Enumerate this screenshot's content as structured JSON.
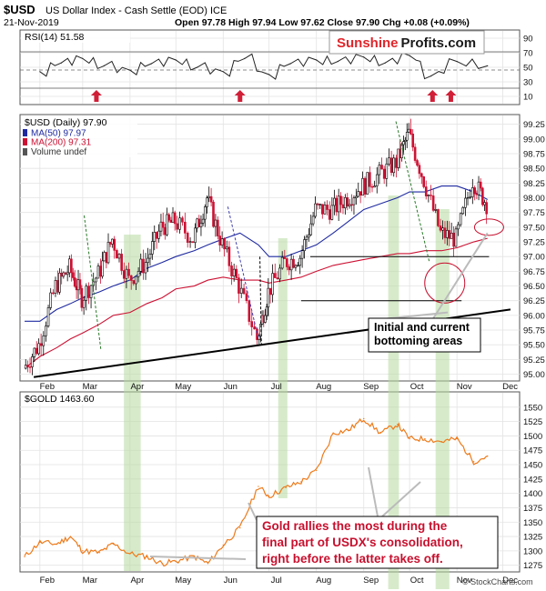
{
  "header": {
    "symbol": "$USD",
    "name": "US Dollar Index - Cash Settle (EOD) ICE",
    "date": "21-Nov-2019",
    "ohlc": "Open 97.78  High 97.94  Low 97.62  Close 97.90  Chg +0.08 (+0.09%)",
    "watermark": "© StockCharts.com"
  },
  "brand": {
    "left": "Sunshine",
    "right": "Profits.com",
    "left_color": "#e0262b",
    "right_color": "#1a1a1a"
  },
  "colors": {
    "candle_up": "#000000",
    "candle_down": "#cc1133",
    "ma50": "#1f2aa0",
    "ma200": "#cc1133",
    "gold": "#ee7a1a",
    "highlight": "#b6dba0",
    "arrow": "#d11f37",
    "annotation": "#c8102e"
  },
  "chart_data": [
    {
      "type": "line",
      "title": "RSI(14) 51.58",
      "ylim": [
        0,
        100
      ],
      "y_ticks": [
        10,
        30,
        50,
        70,
        90
      ],
      "x_ticks": [
        "Feb",
        "Mar",
        "Apr",
        "May",
        "Jun",
        "Jul",
        "Aug",
        "Sep",
        "Oct",
        "Nov",
        "Dec"
      ],
      "x": [
        "2019-02-01",
        "2019-02-15",
        "2019-03-01",
        "2019-03-15",
        "2019-04-01",
        "2019-04-15",
        "2019-05-01",
        "2019-05-15",
        "2019-06-01",
        "2019-06-15",
        "2019-07-01",
        "2019-07-15",
        "2019-08-01",
        "2019-08-15",
        "2019-09-01",
        "2019-09-15",
        "2019-10-01",
        "2019-10-15",
        "2019-11-01",
        "2019-11-21"
      ],
      "series": [
        {
          "name": "RSI(14)",
          "values": [
            44,
            56,
            62,
            52,
            46,
            55,
            60,
            50,
            44,
            62,
            40,
            55,
            60,
            58,
            64,
            56,
            66,
            38,
            58,
            52
          ]
        }
      ],
      "arrows": [
        "2019-03-10",
        "2019-06-12",
        "2019-10-16",
        "2019-10-28"
      ]
    },
    {
      "type": "line",
      "title": "$USD (Daily) 97.90",
      "legend": [
        "MA(50) 97.97",
        "MA(200) 97.31",
        "Volume undef"
      ],
      "legend_placement": "top-left",
      "ylim": [
        94.9,
        99.4
      ],
      "y_ticks": [
        95.0,
        95.25,
        95.5,
        95.75,
        96.0,
        96.25,
        96.5,
        96.75,
        97.0,
        97.25,
        97.5,
        97.75,
        98.0,
        98.25,
        98.5,
        98.75,
        99.0,
        99.25
      ],
      "x": [
        "2019-01-22",
        "2019-02-01",
        "2019-02-12",
        "2019-02-21",
        "2019-03-01",
        "2019-03-12",
        "2019-03-21",
        "2019-04-01",
        "2019-04-12",
        "2019-04-22",
        "2019-05-01",
        "2019-05-13",
        "2019-05-22",
        "2019-06-01",
        "2019-06-12",
        "2019-06-24",
        "2019-07-01",
        "2019-07-12",
        "2019-07-22",
        "2019-08-01",
        "2019-08-12",
        "2019-08-22",
        "2019-09-01",
        "2019-09-12",
        "2019-09-23",
        "2019-10-01",
        "2019-10-11",
        "2019-10-22",
        "2019-11-01",
        "2019-11-12",
        "2019-11-21"
      ],
      "series": [
        {
          "name": "$USD",
          "values": [
            95.1,
            95.5,
            96.5,
            96.8,
            96.3,
            96.7,
            97.3,
            96.6,
            96.9,
            97.5,
            97.6,
            97.3,
            98.0,
            97.2,
            96.5,
            95.6,
            96.4,
            96.9,
            97.0,
            97.8,
            97.8,
            98.0,
            98.2,
            98.4,
            98.6,
            99.1,
            98.3,
            97.4,
            97.3,
            98.3,
            97.9
          ]
        },
        {
          "name": "MA(50)",
          "values": [
            95.9,
            95.9,
            96.1,
            96.2,
            96.3,
            96.4,
            96.5,
            96.6,
            96.8,
            96.9,
            97.0,
            97.1,
            97.2,
            97.3,
            97.4,
            97.2,
            97.0,
            97.0,
            97.1,
            97.2,
            97.4,
            97.6,
            97.8,
            97.9,
            98.0,
            98.1,
            98.1,
            98.2,
            98.2,
            98.1,
            97.97
          ]
        },
        {
          "name": "MA(200)",
          "values": [
            95.1,
            95.3,
            95.45,
            95.6,
            95.7,
            95.85,
            96.0,
            96.05,
            96.2,
            96.3,
            96.45,
            96.5,
            96.6,
            96.65,
            96.6,
            96.6,
            96.55,
            96.6,
            96.65,
            96.75,
            96.85,
            96.9,
            96.95,
            97.0,
            97.05,
            97.05,
            97.1,
            97.1,
            97.15,
            97.25,
            97.31
          ]
        }
      ],
      "annotation": "Initial and current\nbottoming areas",
      "highlight_ranges": [
        [
          "2019-03-28",
          "2019-04-08"
        ],
        [
          "2019-07-07",
          "2019-07-13"
        ],
        [
          "2019-09-17",
          "2019-09-24"
        ],
        [
          "2019-10-18",
          "2019-10-27"
        ]
      ],
      "support_levels": [
        96.25,
        97.0
      ],
      "support_line": {
        "from": [
          "2019-01-28",
          94.95
        ],
        "to": [
          "2019-12-06",
          96.1
        ]
      }
    },
    {
      "type": "line",
      "title": "$GOLD 1463.60",
      "ylim": [
        1265,
        1575
      ],
      "y_ticks": [
        1275,
        1300,
        1325,
        1350,
        1375,
        1400,
        1425,
        1450,
        1475,
        1500,
        1525,
        1550
      ],
      "x_ticks": [
        "Feb",
        "Mar",
        "Apr",
        "May",
        "Jun",
        "Jul",
        "Aug",
        "Sep",
        "Oct",
        "Nov",
        "Dec"
      ],
      "x": [
        "2019-01-22",
        "2019-02-01",
        "2019-02-12",
        "2019-02-21",
        "2019-03-01",
        "2019-03-12",
        "2019-03-21",
        "2019-04-01",
        "2019-04-12",
        "2019-04-22",
        "2019-05-01",
        "2019-05-13",
        "2019-05-22",
        "2019-06-01",
        "2019-06-12",
        "2019-06-24",
        "2019-07-01",
        "2019-07-12",
        "2019-07-22",
        "2019-08-01",
        "2019-08-12",
        "2019-08-22",
        "2019-09-01",
        "2019-09-12",
        "2019-09-23",
        "2019-10-01",
        "2019-10-11",
        "2019-10-22",
        "2019-11-01",
        "2019-11-12",
        "2019-11-21"
      ],
      "series": [
        {
          "name": "$GOLD",
          "values": [
            1290,
            1315,
            1312,
            1325,
            1300,
            1297,
            1312,
            1295,
            1290,
            1278,
            1282,
            1290,
            1278,
            1310,
            1340,
            1412,
            1395,
            1410,
            1420,
            1440,
            1505,
            1510,
            1530,
            1505,
            1520,
            1495,
            1495,
            1490,
            1495,
            1455,
            1465
          ]
        }
      ],
      "annotation": "Gold rallies the most during the\nfinal part of USDX's consolidation,\nright before the latter takes off.",
      "highlight_ranges": [
        [
          "2019-03-28",
          "2019-04-08"
        ],
        [
          "2019-07-07",
          "2019-07-13"
        ],
        [
          "2019-09-17",
          "2019-09-24"
        ],
        [
          "2019-10-18",
          "2019-10-27"
        ]
      ]
    }
  ]
}
